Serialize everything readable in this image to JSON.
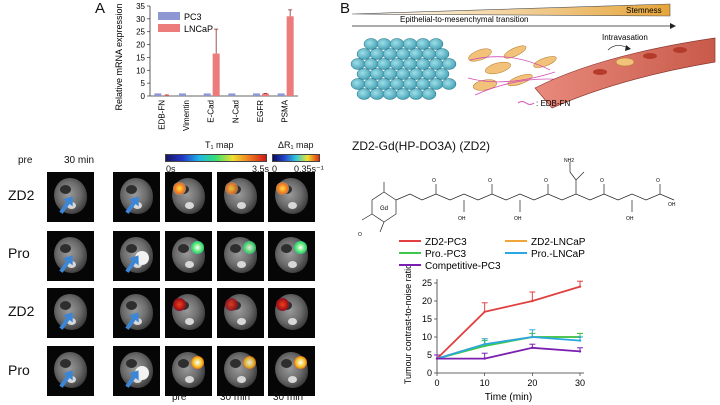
{
  "panel_a": {
    "letter": "A",
    "timepoints": {
      "pre": "pre",
      "post": "30 min"
    },
    "t1_map": {
      "label": "T₁ map",
      "min": "0s",
      "max": "3.5s"
    },
    "dr1_map": {
      "label": "ΔR₁ map",
      "min": "0",
      "max": "0.35s⁻¹"
    },
    "rows": [
      "ZD2",
      "Pro",
      "ZD2",
      "Pro"
    ],
    "bottom_labels": [
      "pre",
      "30 min",
      "30 min"
    ]
  },
  "panel_b": {
    "letter": "B",
    "stemness_label": "Stemness",
    "emt_label": "Epithelial-to-mesenchymal transition",
    "intravasation_label": "Intravasation",
    "edbfn_label": ": EDB-FN",
    "compound_title": "ZD2-Gd(HP-DO3A) (ZD2)"
  },
  "chart_data": [
    {
      "type": "bar",
      "ylabel": "Relative mRNA expression",
      "categories": [
        "EDB-FN",
        "Vimentin",
        "E-Cad",
        "N-Cad",
        "EGFR",
        "PSMA"
      ],
      "ylim": [
        0,
        35
      ],
      "yticks": [
        0,
        5,
        10,
        15,
        20,
        25,
        30,
        35
      ],
      "legend_position": "top-left",
      "series": [
        {
          "name": "PC3",
          "color": "#8f97d2",
          "values": [
            1,
            1,
            1,
            1,
            1,
            1
          ],
          "errors": [
            0,
            0,
            0,
            0,
            0,
            0
          ]
        },
        {
          "name": "LNCaP",
          "color": "#ec7b7b",
          "values": [
            0.3,
            0,
            16.5,
            0,
            0.9,
            31
          ],
          "errors": [
            0.1,
            0,
            9.5,
            0,
            0.1,
            2.5
          ]
        }
      ]
    },
    {
      "type": "line",
      "ylabel": "Tumour contrast-to-noise ratio",
      "xlabel": "Time (min)",
      "x": [
        0,
        10,
        20,
        30
      ],
      "xlim": [
        0,
        30
      ],
      "ylim": [
        0,
        25
      ],
      "xticks": [
        0,
        10,
        20,
        30
      ],
      "yticks": [
        0,
        5,
        10,
        15,
        20,
        25
      ],
      "legend_position": "top",
      "series": [
        {
          "name": "ZD2-PC3",
          "color": "#e24040",
          "values": [
            4,
            17,
            20,
            24
          ],
          "errors": [
            1,
            2.5,
            2.5,
            1.5
          ]
        },
        {
          "name": "ZD2-LNCaP",
          "color": "#f0a53a",
          "values": [
            4,
            8,
            10,
            10
          ],
          "errors": [
            1,
            1.5,
            1,
            1
          ]
        },
        {
          "name": "Pro.-PC3",
          "color": "#3cc84c",
          "values": [
            4,
            7.5,
            10,
            10
          ],
          "errors": [
            1,
            1.5,
            1,
            1
          ]
        },
        {
          "name": "Pro.-LNCaP",
          "color": "#2aa7e0",
          "values": [
            4,
            8,
            10,
            9
          ],
          "errors": [
            1,
            1.5,
            2,
            1
          ]
        },
        {
          "name": "Competitive-PC3",
          "color": "#7a1fb0",
          "values": [
            4,
            4,
            7,
            6
          ],
          "errors": [
            1,
            1.5,
            1,
            1
          ]
        }
      ]
    }
  ]
}
